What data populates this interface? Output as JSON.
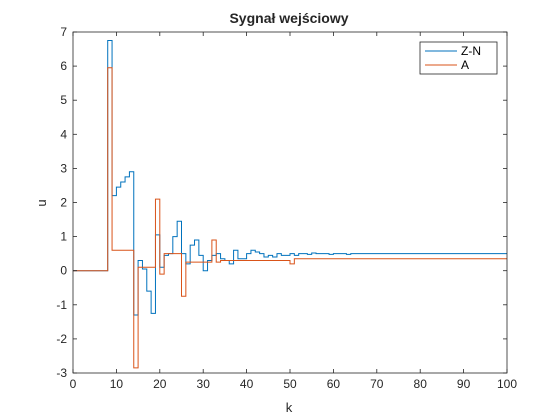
{
  "chart_data": {
    "type": "line",
    "title": "Sygnał wejściowy",
    "xlabel": "k",
    "ylabel": "u",
    "xlim": [
      0,
      100
    ],
    "ylim": [
      -3,
      7
    ],
    "xticks": [
      "0",
      "10",
      "20",
      "30",
      "40",
      "50",
      "60",
      "70",
      "80",
      "90",
      "100"
    ],
    "yticks": [
      "-3",
      "-2",
      "-1",
      "0",
      "1",
      "2",
      "3",
      "4",
      "5",
      "6",
      "7"
    ],
    "step": true,
    "grid": false,
    "legend": "top-right",
    "series": [
      {
        "name": "Z-N",
        "color": "#0072BD",
        "x": [
          0,
          1,
          2,
          3,
          4,
          5,
          6,
          7,
          8,
          9,
          10,
          11,
          12,
          13,
          14,
          15,
          16,
          17,
          18,
          19,
          20,
          21,
          22,
          23,
          24,
          25,
          26,
          27,
          28,
          29,
          30,
          31,
          32,
          33,
          34,
          35,
          36,
          37,
          38,
          39,
          40,
          41,
          42,
          43,
          44,
          45,
          46,
          47,
          48,
          49,
          50,
          51,
          52,
          53,
          54,
          55,
          56,
          57,
          58,
          59,
          60,
          61,
          62,
          63,
          64,
          65,
          66,
          67,
          68,
          69,
          70,
          71,
          72,
          73,
          74,
          75,
          76,
          77,
          78,
          79,
          80,
          81,
          82,
          83,
          84,
          85,
          86,
          87,
          88,
          89,
          90,
          91,
          92,
          93,
          94,
          95,
          96,
          97,
          98,
          99,
          100
        ],
        "y": [
          0,
          0,
          0,
          0,
          0,
          0,
          0,
          0,
          6.75,
          2.2,
          2.45,
          2.6,
          2.75,
          2.9,
          -1.3,
          0.3,
          0.05,
          -0.6,
          -1.25,
          1.05,
          0.1,
          0.45,
          0.5,
          1.0,
          1.45,
          0.5,
          0.2,
          0.75,
          0.9,
          0.45,
          0.0,
          0.3,
          0.45,
          0.5,
          0.35,
          0.3,
          0.2,
          0.6,
          0.35,
          0.35,
          0.5,
          0.6,
          0.55,
          0.5,
          0.4,
          0.45,
          0.4,
          0.5,
          0.45,
          0.45,
          0.5,
          0.45,
          0.5,
          0.5,
          0.48,
          0.52,
          0.5,
          0.5,
          0.5,
          0.48,
          0.5,
          0.5,
          0.5,
          0.48,
          0.5,
          0.5,
          0.5,
          0.5,
          0.5,
          0.5,
          0.5,
          0.5,
          0.5,
          0.5,
          0.5,
          0.5,
          0.5,
          0.5,
          0.5,
          0.5,
          0.5,
          0.5,
          0.5,
          0.5,
          0.5,
          0.5,
          0.5,
          0.5,
          0.5,
          0.5,
          0.5,
          0.5,
          0.5,
          0.5,
          0.5,
          0.5,
          0.5,
          0.5,
          0.5,
          0.5,
          0.5
        ]
      },
      {
        "name": "A",
        "color": "#D95319",
        "x": [
          0,
          1,
          2,
          3,
          4,
          5,
          6,
          7,
          8,
          9,
          10,
          11,
          12,
          13,
          14,
          15,
          16,
          17,
          18,
          19,
          20,
          21,
          22,
          23,
          24,
          25,
          26,
          27,
          28,
          29,
          30,
          31,
          32,
          33,
          34,
          35,
          36,
          37,
          38,
          39,
          40,
          41,
          42,
          43,
          44,
          45,
          46,
          47,
          48,
          49,
          50,
          51,
          52,
          53,
          54,
          55,
          56,
          57,
          58,
          59,
          60,
          61,
          62,
          63,
          64,
          65,
          66,
          67,
          68,
          69,
          70,
          71,
          72,
          73,
          74,
          75,
          76,
          77,
          78,
          79,
          80,
          81,
          82,
          83,
          84,
          85,
          86,
          87,
          88,
          89,
          90,
          91,
          92,
          93,
          94,
          95,
          96,
          97,
          98,
          99,
          100
        ],
        "y": [
          0,
          0,
          0,
          0,
          0,
          0,
          0,
          0,
          5.95,
          0.6,
          0.6,
          0.6,
          0.6,
          0.6,
          -2.85,
          0.1,
          0.1,
          0.1,
          0.1,
          2.1,
          -0.1,
          0.5,
          0.5,
          0.5,
          0.5,
          -0.75,
          0.25,
          0.25,
          0.25,
          0.25,
          0.25,
          0.25,
          0.9,
          0.25,
          0.3,
          0.3,
          0.3,
          0.3,
          0.3,
          0.3,
          0.3,
          0.3,
          0.3,
          0.3,
          0.3,
          0.3,
          0.3,
          0.3,
          0.3,
          0.3,
          0.2,
          0.35,
          0.35,
          0.35,
          0.35,
          0.35,
          0.35,
          0.35,
          0.35,
          0.35,
          0.35,
          0.35,
          0.35,
          0.35,
          0.35,
          0.35,
          0.35,
          0.35,
          0.35,
          0.35,
          0.35,
          0.35,
          0.35,
          0.35,
          0.35,
          0.35,
          0.35,
          0.35,
          0.35,
          0.35,
          0.35,
          0.35,
          0.35,
          0.35,
          0.35,
          0.35,
          0.35,
          0.35,
          0.35,
          0.35,
          0.35,
          0.35,
          0.35,
          0.35,
          0.35,
          0.35,
          0.35,
          0.35,
          0.35,
          0.35,
          0.35
        ]
      }
    ]
  }
}
